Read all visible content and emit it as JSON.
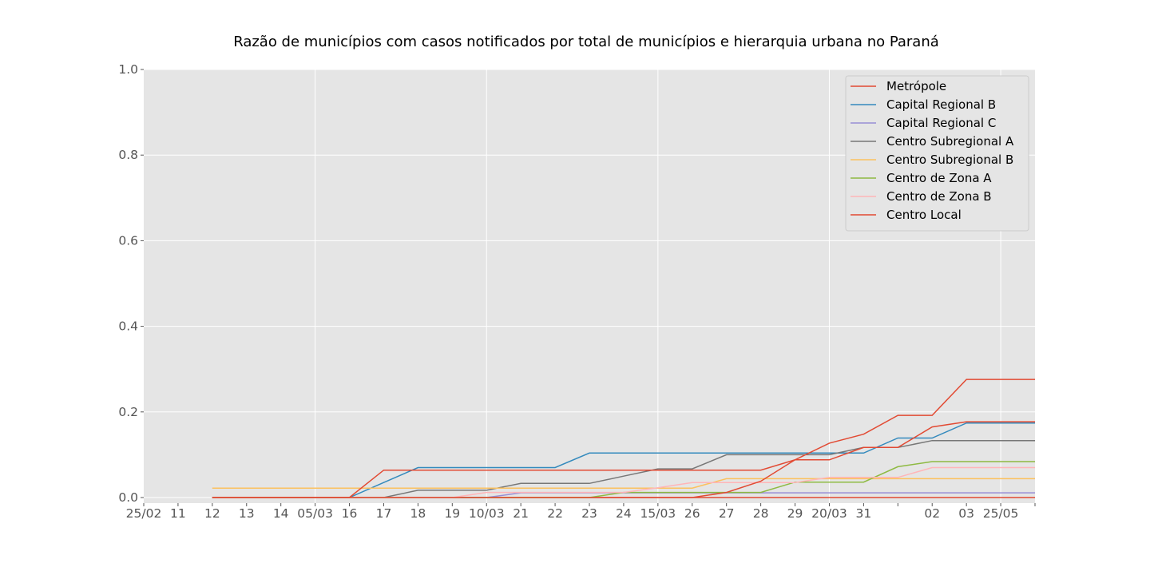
{
  "chart_data": {
    "type": "line",
    "title": "Razão de municípios com casos notificados por total de municípios e hierarquia urbana no Paraná",
    "xlabel": "",
    "ylabel": "",
    "ylim": [
      0.0,
      1.0
    ],
    "yticks": [
      "0.0",
      "0.2",
      "0.4",
      "0.6",
      "0.8",
      "1.0"
    ],
    "ytick_values": [
      0.0,
      0.2,
      0.4,
      0.6,
      0.8,
      1.0
    ],
    "x_tick_labels": [
      "25/02",
      "11",
      "12",
      "13",
      "14",
      "05/03",
      "16",
      "17",
      "18",
      "19",
      "10/03",
      "21",
      "22",
      "23",
      "24",
      "15/03",
      "26",
      "27",
      "28",
      "29",
      "20/03",
      "31",
      "",
      "02",
      "03",
      "25/05",
      ""
    ],
    "x_tick_positions": [
      0,
      1,
      2,
      3,
      4,
      5,
      6,
      7,
      8,
      9,
      10,
      11,
      12,
      13,
      14,
      15,
      16,
      17,
      18,
      19,
      20,
      21,
      22,
      23,
      24,
      25,
      26
    ],
    "xlim": [
      0,
      26
    ],
    "grid": true,
    "legend_position": "top-right",
    "series": [
      {
        "name": "Metrópole",
        "color": "#e24a33",
        "x": [
          2,
          6,
          7,
          25,
          26
        ],
        "y": [
          0.0,
          0.0,
          0.0,
          0.0,
          0.0
        ]
      },
      {
        "name": "Capital Regional B",
        "color": "#348abd",
        "x": [
          2,
          6,
          7,
          8,
          9,
          10,
          11,
          12,
          13,
          14,
          15,
          16,
          17,
          18,
          19,
          20,
          21,
          22,
          23,
          24,
          25,
          26
        ],
        "y": [
          0.0,
          0.0,
          0.035,
          0.07,
          0.07,
          0.07,
          0.07,
          0.07,
          0.104,
          0.104,
          0.104,
          0.104,
          0.104,
          0.104,
          0.104,
          0.104,
          0.104,
          0.139,
          0.139,
          0.174,
          0.174,
          0.174
        ]
      },
      {
        "name": "Capital Regional C",
        "color": "#988ed5",
        "x": [
          2,
          10,
          11,
          12,
          13,
          14,
          15,
          16,
          17,
          18,
          19,
          20,
          21,
          22,
          23,
          24,
          25,
          26
        ],
        "y": [
          0.0,
          0.0,
          0.011,
          0.011,
          0.011,
          0.011,
          0.011,
          0.011,
          0.011,
          0.011,
          0.011,
          0.011,
          0.011,
          0.011,
          0.011,
          0.011,
          0.011,
          0.011
        ]
      },
      {
        "name": "Centro Subregional A",
        "color": "#777777",
        "x": [
          2,
          7,
          8,
          9,
          10,
          11,
          12,
          13,
          14,
          15,
          16,
          17,
          18,
          19,
          20,
          21,
          22,
          23,
          24,
          25,
          26
        ],
        "y": [
          0.0,
          0.0,
          0.017,
          0.017,
          0.017,
          0.033,
          0.033,
          0.033,
          0.05,
          0.067,
          0.067,
          0.1,
          0.1,
          0.1,
          0.1,
          0.117,
          0.117,
          0.133,
          0.133,
          0.133,
          0.133
        ]
      },
      {
        "name": "Centro Subregional B",
        "color": "#fbc15e",
        "x": [
          2,
          6,
          7,
          8,
          9,
          10,
          11,
          12,
          13,
          14,
          15,
          16,
          17,
          18,
          19,
          20,
          21,
          22,
          23,
          24,
          25,
          26
        ],
        "y": [
          0.022,
          0.022,
          0.022,
          0.022,
          0.022,
          0.022,
          0.022,
          0.022,
          0.022,
          0.022,
          0.022,
          0.022,
          0.044,
          0.044,
          0.044,
          0.044,
          0.044,
          0.044,
          0.044,
          0.044,
          0.044,
          0.044
        ]
      },
      {
        "name": "Centro de Zona A",
        "color": "#8eba42",
        "x": [
          2,
          13,
          14,
          15,
          16,
          17,
          18,
          19,
          20,
          21,
          22,
          23,
          24,
          25,
          26
        ],
        "y": [
          0.0,
          0.0,
          0.012,
          0.012,
          0.012,
          0.012,
          0.012,
          0.036,
          0.036,
          0.036,
          0.072,
          0.084,
          0.084,
          0.084,
          0.084
        ]
      },
      {
        "name": "Centro de Zona B",
        "color": "#ffb5b8",
        "x": [
          2,
          9,
          10,
          11,
          12,
          13,
          14,
          15,
          16,
          17,
          18,
          19,
          20,
          21,
          22,
          23,
          24,
          25,
          26
        ],
        "y": [
          0.0,
          0.0,
          0.012,
          0.012,
          0.012,
          0.012,
          0.012,
          0.023,
          0.035,
          0.035,
          0.035,
          0.035,
          0.047,
          0.047,
          0.047,
          0.07,
          0.07,
          0.07,
          0.07
        ]
      },
      {
        "name": "Centro Local",
        "color": "#e24a33",
        "x": [
          2,
          6,
          7,
          8,
          9,
          10,
          11,
          12,
          13,
          14,
          15,
          16,
          17,
          18,
          19,
          20,
          21,
          22,
          23,
          24,
          25,
          26
        ],
        "y": [
          0.0,
          0.0,
          0.0,
          0.0,
          0.0,
          0.0,
          0.0,
          0.0,
          0.0,
          0.0,
          0.0,
          0.0,
          0.012,
          0.038,
          0.088,
          0.127,
          0.148,
          0.192,
          0.192,
          0.276,
          0.276,
          0.276
        ]
      },
      {
        "name": "",
        "color": "#e24a33",
        "x": [
          2,
          6,
          7,
          8,
          9,
          10,
          11,
          12,
          13,
          14,
          15,
          16,
          17,
          18,
          19,
          20,
          21,
          22,
          23,
          24,
          25,
          26
        ],
        "y": [
          0.0,
          0.0,
          0.064,
          0.064,
          0.064,
          0.064,
          0.064,
          0.064,
          0.064,
          0.064,
          0.064,
          0.064,
          0.064,
          0.064,
          0.088,
          0.088,
          0.117,
          0.117,
          0.165,
          0.177,
          0.177,
          0.177
        ]
      }
    ]
  }
}
